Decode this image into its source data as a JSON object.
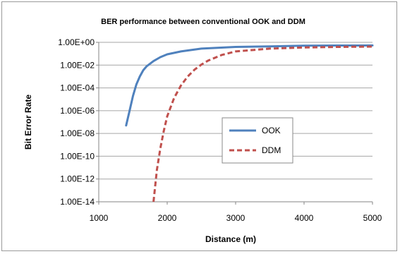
{
  "chart_data": {
    "type": "line",
    "title": "BER performance between conventional OOK and DDM",
    "xlabel": "Distance (m)",
    "ylabel": "Bit Error Rate",
    "xlim": [
      1000,
      5000
    ],
    "ylim_log10": [
      -14,
      0
    ],
    "y_scale": "log",
    "x_ticks": [
      1000,
      2000,
      3000,
      4000,
      5000
    ],
    "x_tick_labels": [
      "1000",
      "2000",
      "3000",
      "4000",
      "5000"
    ],
    "y_ticks_log10": [
      0,
      -2,
      -4,
      -6,
      -8,
      -10,
      -12,
      -14
    ],
    "y_tick_labels": [
      "1.00E+00",
      "1.00E-02",
      "1.00E-04",
      "1.00E-06",
      "1.00E-08",
      "1.00E-10",
      "1.00E-12",
      "1.00E-14"
    ],
    "grid": "horizontal",
    "legend_position": "center-right",
    "series": [
      {
        "name": "OOK",
        "color": "#4f81bd",
        "dash": "solid",
        "x": [
          1400,
          1450,
          1500,
          1550,
          1600,
          1650,
          1700,
          1800,
          1900,
          2000,
          2200,
          2500,
          3000,
          3500,
          4000,
          4500,
          5000
        ],
        "log10_y": [
          -7.3,
          -6.0,
          -4.7,
          -3.7,
          -3.0,
          -2.45,
          -2.1,
          -1.65,
          -1.3,
          -1.05,
          -0.8,
          -0.55,
          -0.4,
          -0.35,
          -0.3,
          -0.28,
          -0.27
        ]
      },
      {
        "name": "DDM",
        "color": "#c0504d",
        "dash": "dashed",
        "x": [
          1800,
          1850,
          1900,
          1950,
          2000,
          2100,
          2200,
          2300,
          2400,
          2500,
          2600,
          2800,
          3000,
          3500,
          4000,
          4500,
          5000
        ],
        "log10_y": [
          -14.0,
          -11.2,
          -9.3,
          -7.8,
          -6.5,
          -4.9,
          -3.8,
          -3.0,
          -2.4,
          -1.95,
          -1.6,
          -1.1,
          -0.8,
          -0.55,
          -0.45,
          -0.4,
          -0.37
        ]
      }
    ]
  }
}
